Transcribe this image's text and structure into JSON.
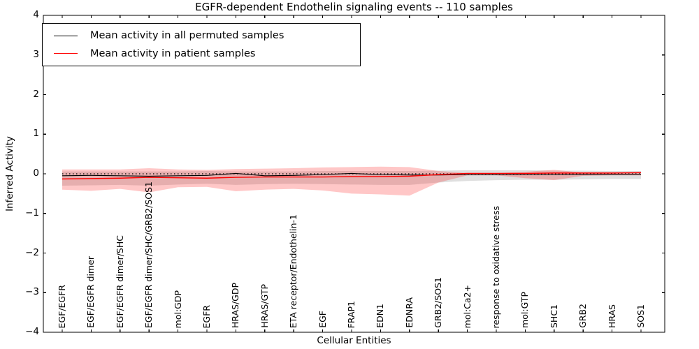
{
  "chart_data": {
    "type": "line",
    "title": "EGFR-dependent Endothelin signaling events -- 110 samples",
    "xlabel": "Cellular Entities",
    "ylabel": "Inferred Activity",
    "ylim": [
      -4,
      4
    ],
    "yticks": [
      4,
      3,
      2,
      1,
      0,
      -1,
      -2,
      -3,
      -4
    ],
    "grid": false,
    "legend_position": "upper left",
    "zero_reference_line": {
      "y": 0,
      "style": "dotted",
      "color": "#000000"
    },
    "categories": [
      "EGF/EGFR",
      "EGF/EGFR dimer",
      "EGF/EGFR dimer/SHC",
      "EGF/EGFR dimer/SHC/GRB2/SOS1",
      "mol:GDP",
      "EGFR",
      "HRAS/GDP",
      "HRAS/GTP",
      "ETA receptor/Endothelin-1",
      "EGF",
      "FRAP1",
      "EDN1",
      "EDNRA",
      "GRB2/SOS1",
      "mol:Ca2+",
      "response to oxidative stress",
      "mol:GTP",
      "SHC1",
      "GRB2",
      "HRAS",
      "SOS1"
    ],
    "series": [
      {
        "name": "Mean activity in all permuted samples",
        "color": "#000000",
        "values": [
          -0.05,
          -0.04,
          -0.05,
          -0.06,
          -0.05,
          -0.04,
          0.01,
          -0.05,
          -0.04,
          -0.02,
          0.01,
          -0.02,
          -0.03,
          -0.03,
          -0.02,
          -0.02,
          -0.02,
          -0.02,
          -0.015,
          -0.01,
          -0.01
        ]
      },
      {
        "name": "Mean activity in patient samples",
        "color": "#ff0000",
        "values": [
          -0.13,
          -0.12,
          -0.11,
          -0.09,
          -0.1,
          -0.11,
          -0.09,
          -0.08,
          -0.08,
          -0.08,
          -0.07,
          -0.07,
          -0.06,
          -0.02,
          0.01,
          0.01,
          0.01,
          0.02,
          0.02,
          0.02,
          0.03
        ]
      }
    ],
    "bands": [
      {
        "name": "permuted-samples-std-band",
        "color": "#808080",
        "opacity": 0.25,
        "upper": [
          0.06,
          0.06,
          0.06,
          0.06,
          0.06,
          0.07,
          0.06,
          0.06,
          0.06,
          0.07,
          0.07,
          0.07,
          0.07,
          0.08,
          0.09,
          0.09,
          0.09,
          0.08,
          0.08,
          0.07,
          0.07
        ],
        "lower": [
          -0.3,
          -0.29,
          -0.28,
          -0.3,
          -0.27,
          -0.25,
          -0.28,
          -0.26,
          -0.25,
          -0.26,
          -0.27,
          -0.28,
          -0.28,
          -0.22,
          -0.18,
          -0.16,
          -0.15,
          -0.15,
          -0.14,
          -0.13,
          -0.13
        ]
      },
      {
        "name": "patient-samples-std-band",
        "color": "#ff0000",
        "opacity": 0.22,
        "upper": [
          0.11,
          0.11,
          0.11,
          0.14,
          0.11,
          0.1,
          0.12,
          0.13,
          0.14,
          0.16,
          0.17,
          0.18,
          0.17,
          0.07,
          0.02,
          0.02,
          0.05,
          0.1,
          0.03,
          0.03,
          0.03
        ],
        "lower": [
          -0.4,
          -0.43,
          -0.38,
          -0.47,
          -0.34,
          -0.33,
          -0.44,
          -0.4,
          -0.38,
          -0.42,
          -0.5,
          -0.52,
          -0.55,
          -0.22,
          -0.04,
          -0.04,
          -0.11,
          -0.16,
          -0.05,
          -0.04,
          -0.04
        ]
      }
    ]
  }
}
